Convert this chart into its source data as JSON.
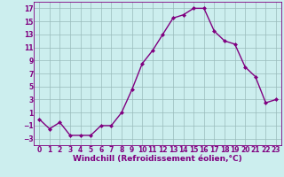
{
  "x": [
    0,
    1,
    2,
    3,
    4,
    5,
    6,
    7,
    8,
    9,
    10,
    11,
    12,
    13,
    14,
    15,
    16,
    17,
    18,
    19,
    20,
    21,
    22,
    23
  ],
  "y": [
    0,
    -1.5,
    -0.5,
    -2.5,
    -2.5,
    -2.5,
    -1,
    -1,
    1,
    4.5,
    8.5,
    10.5,
    13,
    15.5,
    16,
    17,
    17,
    13.5,
    12,
    11.5,
    8,
    6.5,
    2.5,
    3
  ],
  "line_color": "#800080",
  "marker": "D",
  "marker_size": 2.0,
  "bg_color": "#cceeee",
  "grid_color": "#99bbbb",
  "xlabel": "Windchill (Refroidissement éolien,°C)",
  "xlabel_fontsize": 6.5,
  "xlim": [
    -0.5,
    23.5
  ],
  "ylim": [
    -4,
    18
  ],
  "yticks": [
    -3,
    -1,
    1,
    3,
    5,
    7,
    9,
    11,
    13,
    15,
    17
  ],
  "xticks": [
    0,
    1,
    2,
    3,
    4,
    5,
    6,
    7,
    8,
    9,
    10,
    11,
    12,
    13,
    14,
    15,
    16,
    17,
    18,
    19,
    20,
    21,
    22,
    23
  ],
  "tick_fontsize": 5.5,
  "line_width": 1.0
}
